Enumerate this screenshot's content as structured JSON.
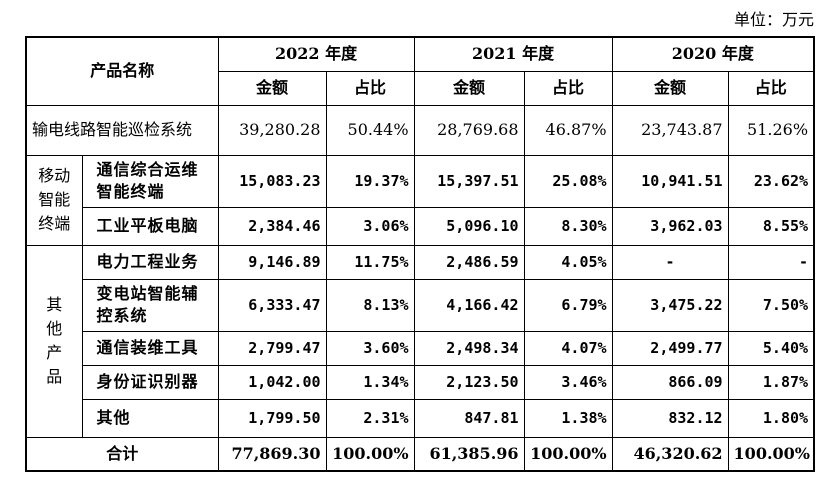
{
  "unit": "单位：万元",
  "header": {
    "product_name": "产品名称",
    "years": [
      "2022 年度",
      "2021 年度",
      "2020 年度"
    ],
    "amount": "金额",
    "ratio": "占比"
  },
  "rows": {
    "r0": {
      "label": "输电线路智能巡检系统",
      "v": [
        "39,280.28",
        "50.44%",
        "28,769.68",
        "46.87%",
        "23,743.87",
        "51.26%"
      ]
    },
    "group1": "移动智能终端",
    "r1": {
      "label": "通信综合运维智能终端",
      "v": [
        "15,083.23",
        "19.37%",
        "15,397.51",
        "25.08%",
        "10,941.51",
        "23.62%"
      ]
    },
    "r2": {
      "label": "工业平板电脑",
      "v": [
        "2,384.46",
        "3.06%",
        "5,096.10",
        "8.30%",
        "3,962.03",
        "8.55%"
      ]
    },
    "group2": "其他产品",
    "r3": {
      "label": "电力工程业务",
      "v": [
        "9,146.89",
        "11.75%",
        "2,486.59",
        "4.05%",
        "-",
        "-"
      ]
    },
    "r4": {
      "label": "变电站智能辅控系统",
      "v": [
        "6,333.47",
        "8.13%",
        "4,166.42",
        "6.79%",
        "3,475.22",
        "7.50%"
      ]
    },
    "r5": {
      "label": "通信装维工具",
      "v": [
        "2,799.47",
        "3.60%",
        "2,498.34",
        "4.07%",
        "2,499.77",
        "5.40%"
      ]
    },
    "r6": {
      "label": "身份证识别器",
      "v": [
        "1,042.00",
        "1.34%",
        "2,123.50",
        "3.46%",
        "866.09",
        "1.87%"
      ]
    },
    "r7": {
      "label": "其他",
      "v": [
        "1,799.50",
        "2.31%",
        "847.81",
        "1.38%",
        "832.12",
        "1.80%"
      ]
    },
    "total": {
      "label": "合计",
      "v": [
        "77,869.30",
        "100.00%",
        "61,385.96",
        "100.00%",
        "46,320.62",
        "100.00%"
      ]
    }
  }
}
